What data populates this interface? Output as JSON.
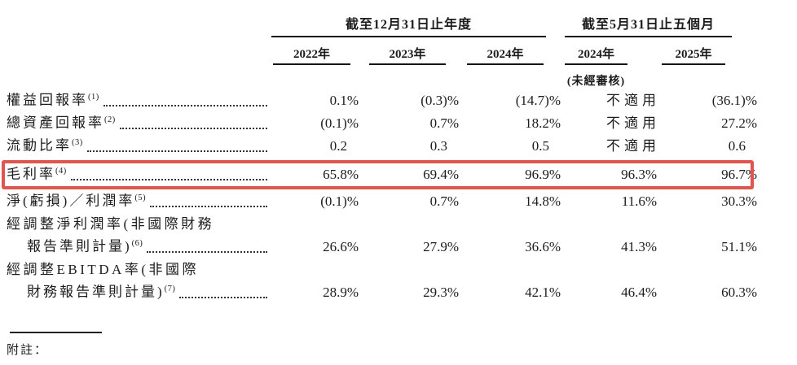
{
  "page": {
    "background": "#ffffff",
    "text_color": "#1c1c1c"
  },
  "highlight": {
    "border_color": "#e0554e",
    "highlighted_metric": "毛利率"
  },
  "header": {
    "group1": {
      "title": "截至12月31日止年度",
      "years": [
        "2022年",
        "2023年",
        "2024年"
      ]
    },
    "group2": {
      "title": "截至5月31日止五個月",
      "years": [
        "2024年",
        "2025年"
      ],
      "subnote": "(未經審核)"
    }
  },
  "table": {
    "rows": [
      {
        "label": "權益回報率",
        "sup": "(1)",
        "values": [
          "0.1%",
          "(0.3)%",
          "(14.7)%",
          "不適用",
          "(36.1)%"
        ]
      },
      {
        "label": "總資產回報率",
        "sup": "(2)",
        "values": [
          "(0.1)%",
          "0.7%",
          "18.2%",
          "不適用",
          "27.2%"
        ]
      },
      {
        "label": "流動比率",
        "sup": "(3)",
        "values": [
          "0.2",
          "0.3",
          "0.5",
          "不適用",
          "0.6"
        ]
      },
      {
        "label": "毛利率",
        "sup": "(4)",
        "highlighted": true,
        "values": [
          "65.8%",
          "69.4%",
          "96.9%",
          "96.3%",
          "96.7%"
        ]
      },
      {
        "label": "淨(虧損)／利潤率",
        "sup": "(5)",
        "values": [
          "(0.1)%",
          "0.7%",
          "14.8%",
          "11.6%",
          "30.3%"
        ]
      },
      {
        "label_line1": "經調整淨利潤率(非國際財務",
        "label_line2": "報告準則計量)",
        "sup": "(6)",
        "values": [
          "26.6%",
          "27.9%",
          "36.6%",
          "41.3%",
          "51.1%"
        ]
      },
      {
        "label_line1": "經調整EBITDA率(非國際",
        "label_line2": "財務報告準則計量)",
        "sup": "(7)",
        "values": [
          "28.9%",
          "29.3%",
          "42.1%",
          "46.4%",
          "60.3%"
        ]
      }
    ]
  },
  "footer": {
    "notes_label": "附註："
  }
}
